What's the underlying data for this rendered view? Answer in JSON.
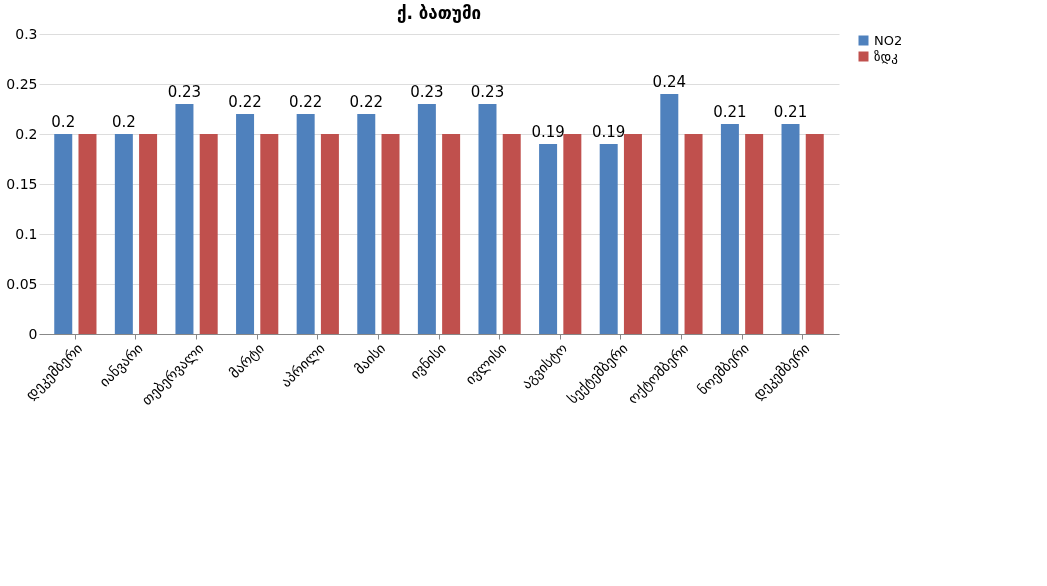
{
  "chart_data": {
    "type": "bar",
    "title": "ქ. ბათუმი",
    "categories": [
      "დეკემბერი",
      "იანვარი",
      "თებერვალი",
      "მარტი",
      "აპრილი",
      "მაისი",
      "ივნისი",
      "ივლისი",
      "აგვისტო",
      "სექტემბერი",
      "ოქტომბერი",
      "ნოემბერი",
      "დეკემბერი"
    ],
    "series": [
      {
        "name": "NO2",
        "color": "#4f81bd",
        "values": [
          0.2,
          0.2,
          0.23,
          0.22,
          0.22,
          0.22,
          0.23,
          0.23,
          0.19,
          0.19,
          0.24,
          0.21,
          0.21
        ],
        "value_labels": [
          "0.2",
          "0.2",
          "0.23",
          "0.22",
          "0.22",
          "0.22",
          "0.23",
          "0.23",
          "0.19",
          "0.19",
          "0.24",
          "0.21",
          "0.21"
        ]
      },
      {
        "name": "ზდკ",
        "color": "#c0504d",
        "values": [
          0.2,
          0.2,
          0.2,
          0.2,
          0.2,
          0.2,
          0.2,
          0.2,
          0.2,
          0.2,
          0.2,
          0.2,
          0.2
        ]
      }
    ],
    "ylim": [
      0,
      0.3
    ],
    "yticks": [
      0,
      0.05,
      0.1,
      0.15,
      0.2,
      0.25,
      0.3
    ],
    "grid": "y",
    "legend": "right"
  }
}
